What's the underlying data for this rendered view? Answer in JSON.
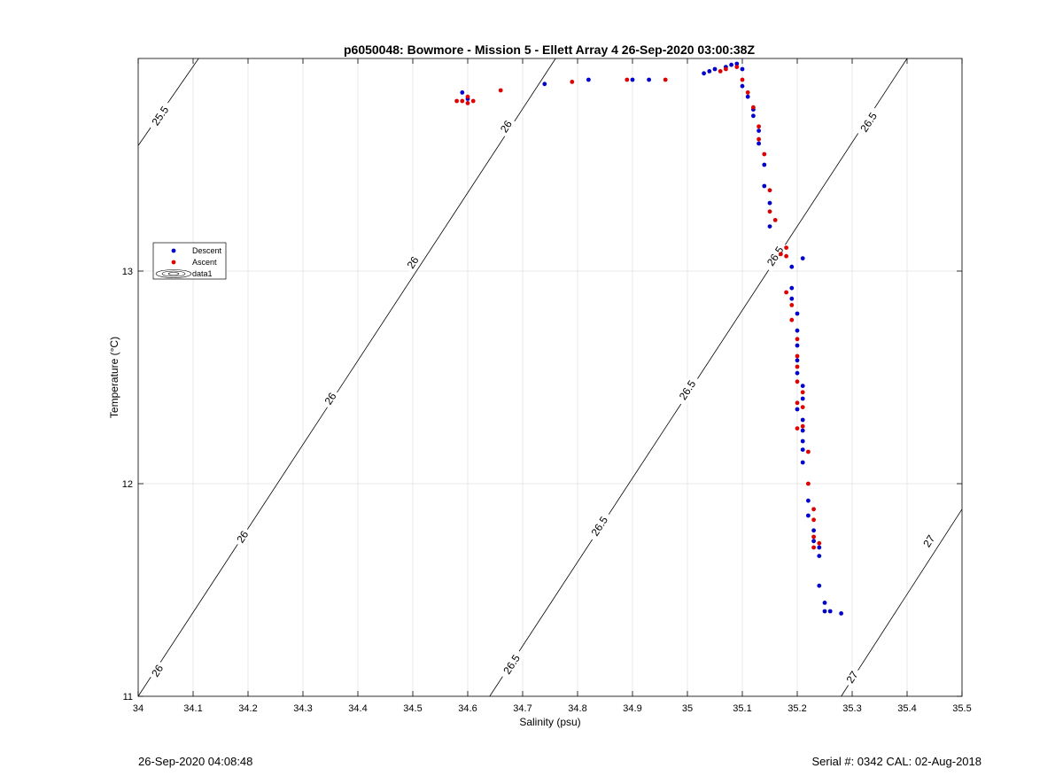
{
  "chart_data": {
    "type": "scatter",
    "title": "p6050048: Bowmore - Mission 5 - Ellett Array 4 26-Sep-2020 03:00:38Z",
    "xlabel": "Salinity (psu)",
    "ylabel": "Temperature (°C)",
    "xlim": [
      34,
      35.5
    ],
    "ylim": [
      11,
      14
    ],
    "x_ticks": [
      34,
      34.1,
      34.2,
      34.3,
      34.4,
      34.5,
      34.6,
      34.7,
      34.8,
      34.9,
      35,
      35.1,
      35.2,
      35.3,
      35.4,
      35.5
    ],
    "x_tick_labels": [
      "34",
      "34.1",
      "34.2",
      "34.3",
      "34.4",
      "34.5",
      "34.6",
      "34.7",
      "34.8",
      "34.9",
      "35",
      "35.1",
      "35.2",
      "35.3",
      "35.4",
      "35.5"
    ],
    "y_ticks": [
      11,
      12,
      13
    ],
    "y_tick_labels": [
      "11",
      "12",
      "13"
    ],
    "grid": true,
    "legend_position": "left-middle",
    "legend": [
      "Descent",
      "Ascent",
      "data1"
    ],
    "series": [
      {
        "name": "Descent",
        "color": "#0000cc",
        "points": [
          [
            34.59,
            13.84
          ],
          [
            34.6,
            13.81
          ],
          [
            34.74,
            13.88
          ],
          [
            34.82,
            13.9
          ],
          [
            34.9,
            13.9
          ],
          [
            34.93,
            13.9
          ],
          [
            35.03,
            13.93
          ],
          [
            35.04,
            13.94
          ],
          [
            35.05,
            13.95
          ],
          [
            35.07,
            13.96
          ],
          [
            35.08,
            13.97
          ],
          [
            35.09,
            13.975
          ],
          [
            35.1,
            13.95
          ],
          [
            35.1,
            13.87
          ],
          [
            35.11,
            13.82
          ],
          [
            35.12,
            13.76
          ],
          [
            35.12,
            13.73
          ],
          [
            35.13,
            13.66
          ],
          [
            35.13,
            13.6
          ],
          [
            35.14,
            13.5
          ],
          [
            35.14,
            13.4
          ],
          [
            35.15,
            13.32
          ],
          [
            35.15,
            13.21
          ],
          [
            35.19,
            13.02
          ],
          [
            35.21,
            13.06
          ],
          [
            35.19,
            12.92
          ],
          [
            35.19,
            12.87
          ],
          [
            35.2,
            12.8
          ],
          [
            35.2,
            12.72
          ],
          [
            35.2,
            12.65
          ],
          [
            35.2,
            12.58
          ],
          [
            35.2,
            12.52
          ],
          [
            35.21,
            12.46
          ],
          [
            35.21,
            12.4
          ],
          [
            35.2,
            12.35
          ],
          [
            35.21,
            12.3
          ],
          [
            35.21,
            12.25
          ],
          [
            35.21,
            12.2
          ],
          [
            35.21,
            12.16
          ],
          [
            35.21,
            12.1
          ],
          [
            35.22,
            11.92
          ],
          [
            35.22,
            11.85
          ],
          [
            35.23,
            11.78
          ],
          [
            35.23,
            11.73
          ],
          [
            35.24,
            11.7
          ],
          [
            35.24,
            11.66
          ],
          [
            35.24,
            11.52
          ],
          [
            35.25,
            11.44
          ],
          [
            35.25,
            11.4
          ],
          [
            35.26,
            11.4
          ],
          [
            35.28,
            11.39
          ]
        ]
      },
      {
        "name": "Ascent",
        "color": "#dd0000",
        "points": [
          [
            34.58,
            13.8
          ],
          [
            34.59,
            13.8
          ],
          [
            34.6,
            13.79
          ],
          [
            34.6,
            13.82
          ],
          [
            34.61,
            13.8
          ],
          [
            34.66,
            13.85
          ],
          [
            34.79,
            13.89
          ],
          [
            34.89,
            13.9
          ],
          [
            34.96,
            13.9
          ],
          [
            35.06,
            13.94
          ],
          [
            35.07,
            13.95
          ],
          [
            35.09,
            13.96
          ],
          [
            35.1,
            13.9
          ],
          [
            35.11,
            13.84
          ],
          [
            35.12,
            13.77
          ],
          [
            35.13,
            13.68
          ],
          [
            35.13,
            13.62
          ],
          [
            35.14,
            13.55
          ],
          [
            35.15,
            13.38
          ],
          [
            35.15,
            13.28
          ],
          [
            35.16,
            13.24
          ],
          [
            35.17,
            13.08
          ],
          [
            35.18,
            13.11
          ],
          [
            35.18,
            13.07
          ],
          [
            35.18,
            12.9
          ],
          [
            35.19,
            12.84
          ],
          [
            35.19,
            12.77
          ],
          [
            35.2,
            12.68
          ],
          [
            35.2,
            12.6
          ],
          [
            35.2,
            12.55
          ],
          [
            35.2,
            12.48
          ],
          [
            35.21,
            12.43
          ],
          [
            35.2,
            12.38
          ],
          [
            35.21,
            12.36
          ],
          [
            35.2,
            12.26
          ],
          [
            35.21,
            12.27
          ],
          [
            35.22,
            12.15
          ],
          [
            35.22,
            12.0
          ],
          [
            35.23,
            11.88
          ],
          [
            35.23,
            11.83
          ],
          [
            35.23,
            11.75
          ],
          [
            35.23,
            11.7
          ],
          [
            35.24,
            11.72
          ]
        ]
      }
    ],
    "contour_lines": [
      {
        "level": 25.5,
        "points": [
          [
            34.0,
            13.59
          ],
          [
            34.11,
            14.0
          ]
        ],
        "labels": [
          {
            "text": "25.5",
            "at": [
              34.04,
              13.73
            ]
          }
        ]
      },
      {
        "level": 26,
        "points": [
          [
            34.0,
            11.0
          ],
          [
            34.76,
            14.0
          ]
        ],
        "labels": [
          {
            "text": "26",
            "at": [
              34.035,
              11.12
            ]
          },
          {
            "text": "26",
            "at": [
              34.19,
              11.75
            ]
          },
          {
            "text": "26",
            "at": [
              34.35,
              12.4
            ]
          },
          {
            "text": "26",
            "at": [
              34.5,
              13.04
            ]
          },
          {
            "text": "26",
            "at": [
              34.67,
              13.68
            ]
          }
        ]
      },
      {
        "level": 26.5,
        "points": [
          [
            34.64,
            11.0
          ],
          [
            35.4,
            14.0
          ]
        ],
        "labels": [
          {
            "text": "26.5",
            "at": [
              34.68,
              11.15
            ]
          },
          {
            "text": "26.5",
            "at": [
              34.84,
              11.8
            ]
          },
          {
            "text": "26.5",
            "at": [
              35.0,
              12.44
            ]
          },
          {
            "text": "26.5",
            "at": [
              35.16,
              13.07
            ]
          },
          {
            "text": "26.5",
            "at": [
              35.33,
              13.7
            ]
          }
        ]
      },
      {
        "level": 27,
        "points": [
          [
            35.28,
            11.0
          ],
          [
            35.5,
            11.88
          ]
        ],
        "labels": [
          {
            "text": "27",
            "at": [
              35.3,
              11.09
            ]
          },
          {
            "text": "27",
            "at": [
              35.44,
              11.73
            ]
          }
        ]
      }
    ]
  },
  "footer": {
    "datetime": "26-Sep-2020 04:08:48",
    "serial": "Serial #: 0342  CAL: 02-Aug-2018"
  }
}
